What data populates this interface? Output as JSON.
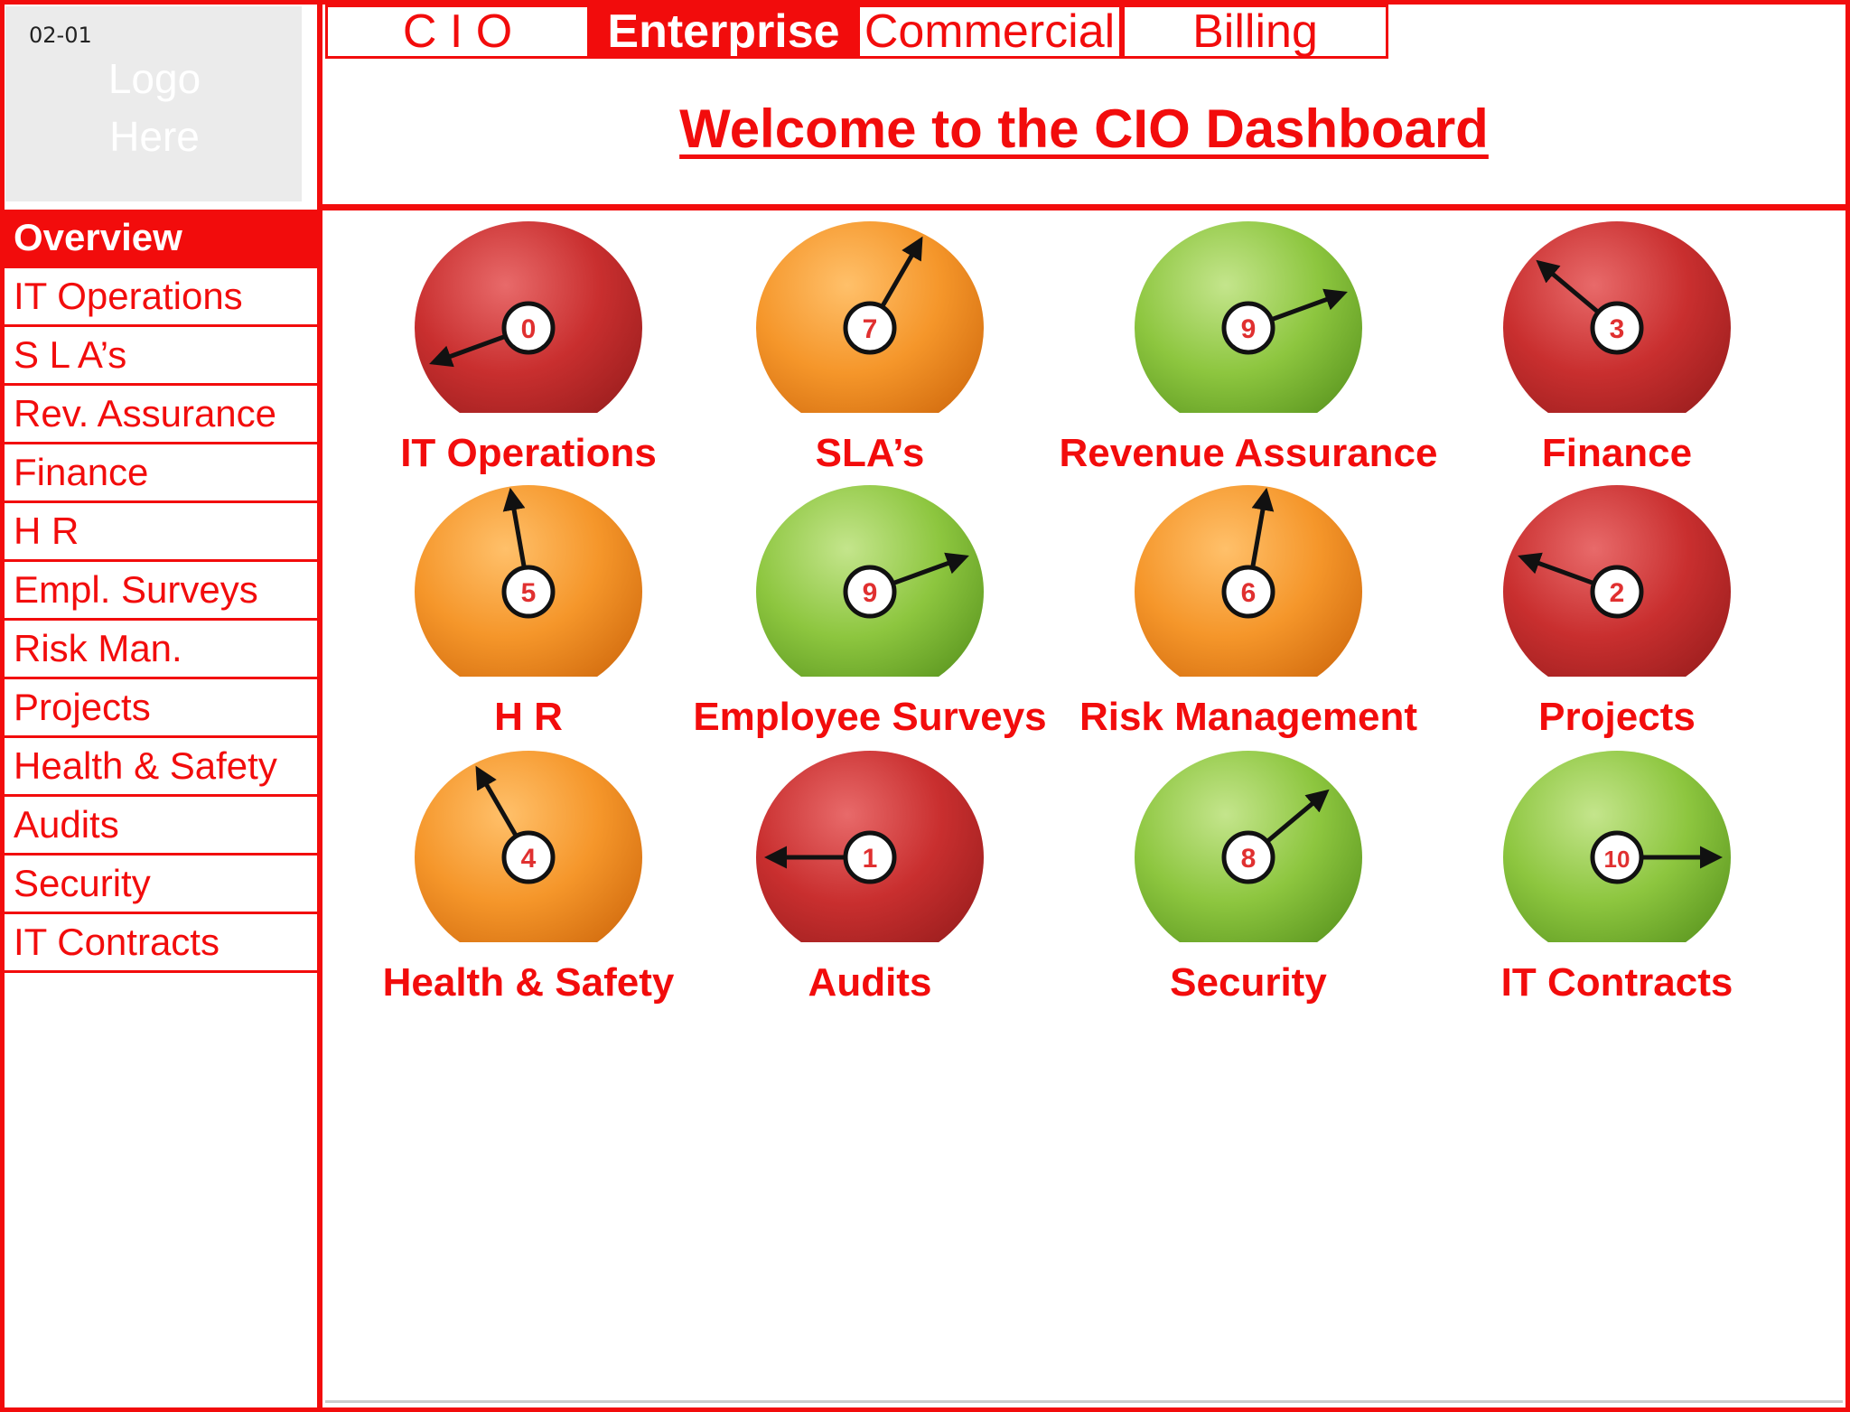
{
  "slide_id": "02-01",
  "logo": {
    "line1": "Logo",
    "line2": "Here"
  },
  "tabs": [
    {
      "label": "C I O",
      "active": false
    },
    {
      "label": "Enterprise",
      "active": true
    },
    {
      "label": "Commercial",
      "active": false
    },
    {
      "label": "Billing",
      "active": false
    }
  ],
  "page_title": "Welcome to the CIO Dashboard",
  "nav": {
    "items": [
      {
        "label": "Overview",
        "active": true
      },
      {
        "label": "IT Operations"
      },
      {
        "label": "S L A’s"
      },
      {
        "label": "Rev. Assurance"
      },
      {
        "label": "Finance"
      },
      {
        "label": "H R"
      },
      {
        "label": "Empl. Surveys"
      },
      {
        "label": "Risk Man."
      },
      {
        "label": "Projects"
      },
      {
        "label": "Health & Safety"
      },
      {
        "label": "Audits"
      },
      {
        "label": "Security"
      },
      {
        "label": "IT Contracts"
      }
    ]
  },
  "colors": {
    "red": "#d63a3a",
    "orange": "#f5962a",
    "green": "#8dc63f",
    "accent": "#f20c0c"
  },
  "gauges": [
    {
      "label": "IT Operations",
      "value": "0",
      "color": "red"
    },
    {
      "label": "SLA’s",
      "value": "7",
      "color": "orange"
    },
    {
      "label": "Revenue Assurance",
      "value": "9",
      "color": "green"
    },
    {
      "label": "Finance",
      "value": "3",
      "color": "red"
    },
    {
      "label": "H R",
      "value": "5",
      "color": "orange"
    },
    {
      "label": "Employee Surveys",
      "value": "9",
      "color": "green"
    },
    {
      "label": "Risk Management",
      "value": "6",
      "color": "orange"
    },
    {
      "label": "Projects",
      "value": "2",
      "color": "red"
    },
    {
      "label": "Health & Safety",
      "value": "4",
      "color": "orange"
    },
    {
      "label": "Audits",
      "value": "1",
      "color": "red"
    },
    {
      "label": "Security",
      "value": "8",
      "color": "green"
    },
    {
      "label": "IT Contracts",
      "value": "10",
      "color": "green"
    }
  ]
}
